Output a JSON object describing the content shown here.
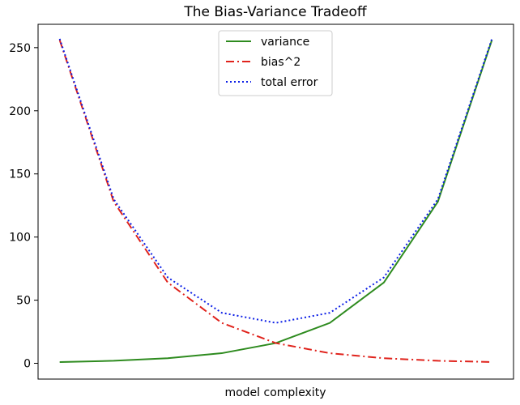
{
  "chart_data": {
    "type": "line",
    "title": "The Bias-Variance Tradeoff",
    "xlabel": "model complexity",
    "ylabel": "",
    "x": [
      0,
      1,
      2,
      3,
      4,
      5,
      6,
      7,
      8
    ],
    "xlim": [
      -0.4,
      8.4
    ],
    "ylim": [
      -12.5,
      268.5
    ],
    "yticks": [
      0,
      50,
      100,
      150,
      200,
      250
    ],
    "xticks_shown": false,
    "grid": false,
    "legend_position": "top-center",
    "series": [
      {
        "name": "variance",
        "values": [
          1,
          2,
          4,
          8,
          16,
          32,
          64,
          128,
          256
        ],
        "color": "#2e8b1f",
        "style": "solid"
      },
      {
        "name": "bias^2",
        "values": [
          256,
          128,
          64,
          32,
          16,
          8,
          4,
          2,
          1
        ],
        "color": "#e0231c",
        "style": "dashdot"
      },
      {
        "name": "total error",
        "values": [
          257,
          130,
          68,
          40,
          32,
          40,
          68,
          130,
          257
        ],
        "color": "#0b1ee6",
        "style": "dotted"
      }
    ]
  }
}
